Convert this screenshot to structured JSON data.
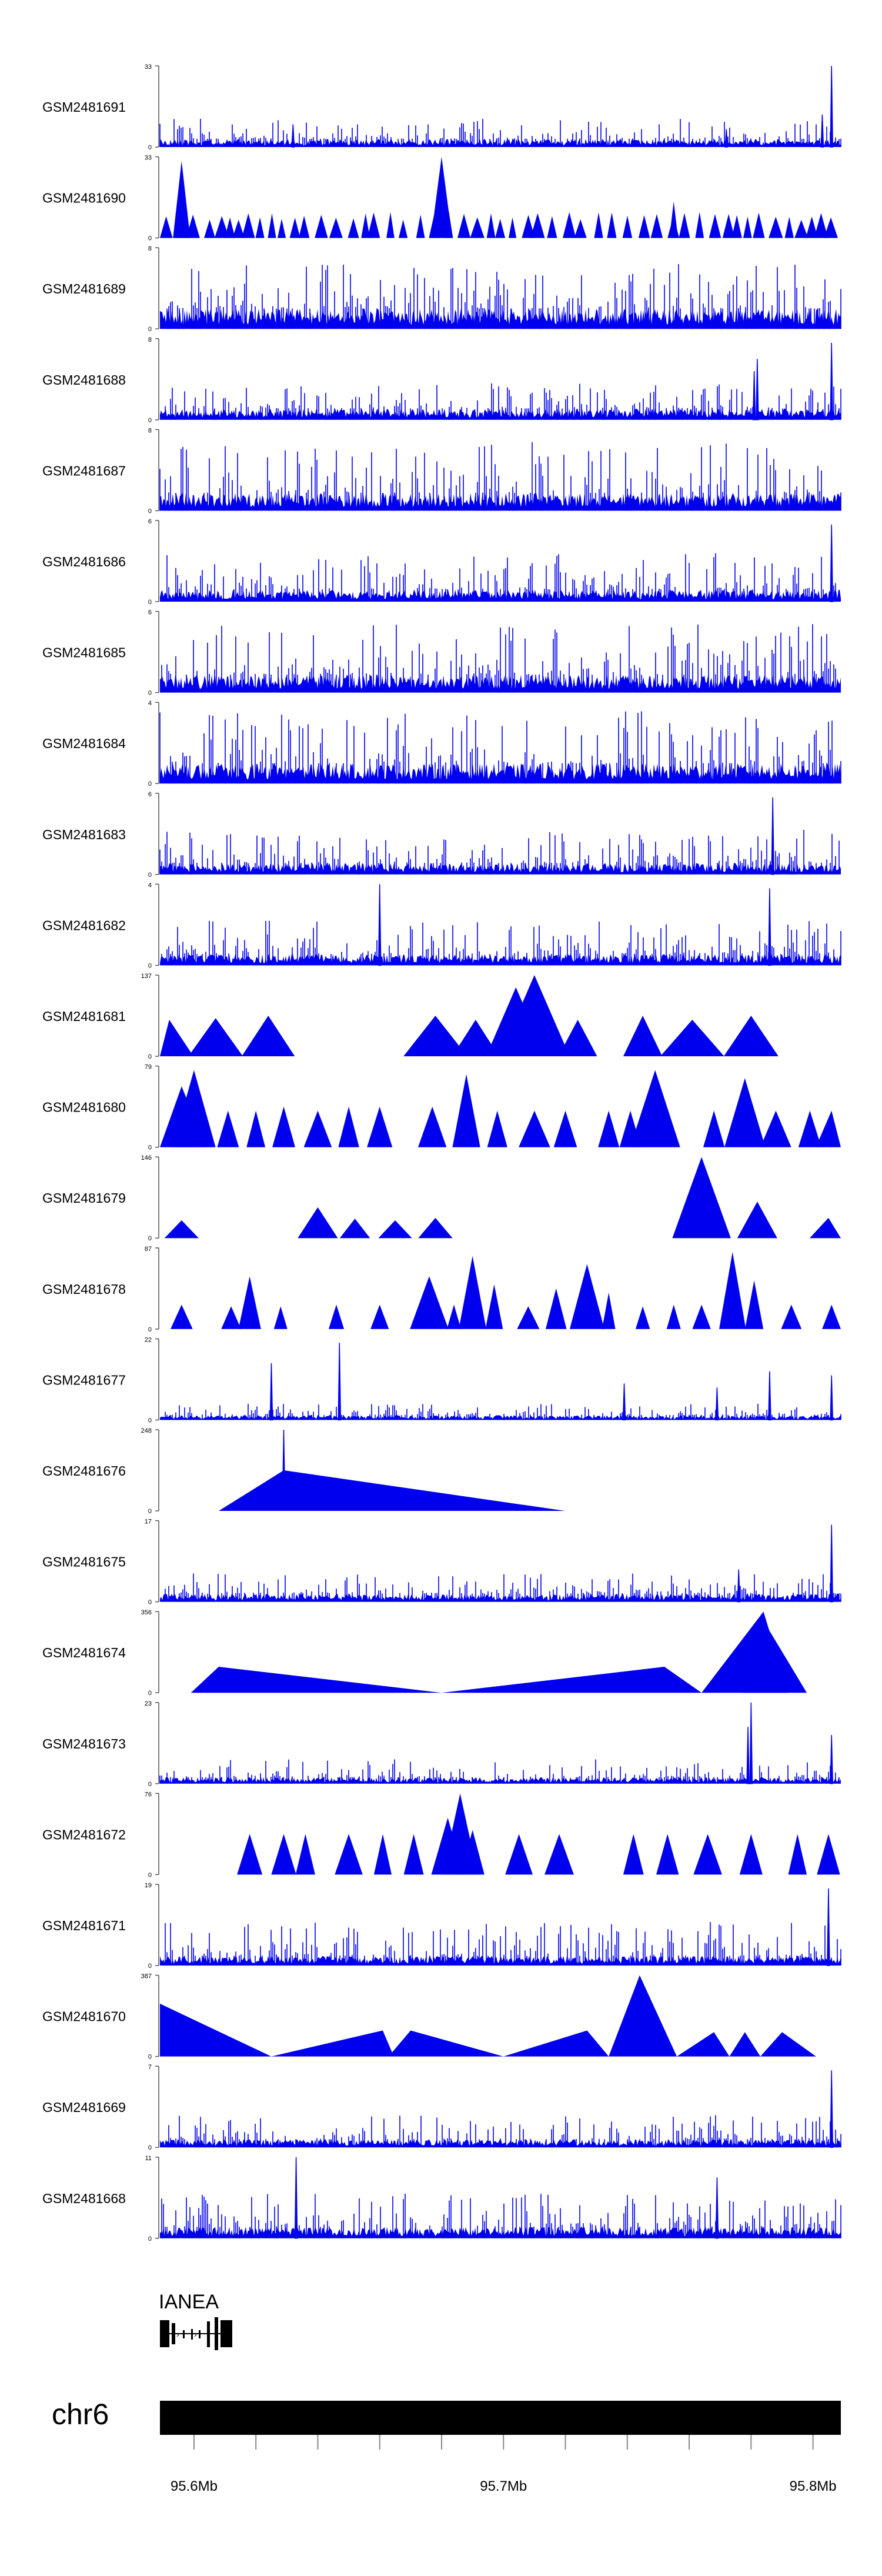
{
  "chart_data": {
    "type": "area",
    "title": "",
    "xlabel": "",
    "ylabel": "",
    "x_range_mb": [
      95.589,
      95.809
    ],
    "x_ticks": [
      {
        "value": 95.6,
        "label": "95.6Mb"
      },
      {
        "value": 95.7,
        "label": "95.7Mb"
      },
      {
        "value": 95.8,
        "label": "95.8Mb"
      }
    ],
    "minor_ticks": [
      95.6,
      95.62,
      95.64,
      95.66,
      95.68,
      95.7,
      95.72,
      95.74,
      95.76,
      95.78,
      95.8
    ],
    "chromosome": {
      "label": "chr6"
    },
    "gene": {
      "label": "IANEA"
    },
    "track_color": "#0000ee",
    "tracks": [
      {
        "name": "GSM2481691",
        "ymax_label": "33",
        "ymin_label": "0",
        "ymax": 33,
        "style": "dense",
        "base": 0.1,
        "spike": 0.35,
        "seed": 11,
        "peaks": [
          [
            95.632,
            0.28
          ],
          [
            95.772,
            0.22
          ],
          [
            95.806,
            1.0
          ],
          [
            95.803,
            0.4
          ]
        ]
      },
      {
        "name": "GSM2481690",
        "ymax_label": "33",
        "ymin_label": "0",
        "ymax": 33,
        "style": "sparse",
        "spacing": 0.0042,
        "width": 0.0018,
        "hlo": 0.22,
        "hhi": 0.34,
        "seed": 12,
        "peaks": [
          [
            95.596,
            0.95
          ],
          [
            95.68,
            1.0
          ],
          [
            95.755,
            0.45
          ]
        ]
      },
      {
        "name": "GSM2481689",
        "ymax_label": "8",
        "ymin_label": "0",
        "ymax": 8,
        "style": "dense",
        "base": 0.25,
        "spike": 0.8,
        "seed": 13,
        "peaks": []
      },
      {
        "name": "GSM2481688",
        "ymax_label": "8",
        "ymin_label": "0",
        "ymax": 8,
        "style": "dense",
        "base": 0.14,
        "spike": 0.45,
        "seed": 14,
        "peaks": [
          [
            95.782,
            0.75
          ],
          [
            95.781,
            0.6
          ],
          [
            95.806,
            0.95
          ]
        ]
      },
      {
        "name": "GSM2481687",
        "ymax_label": "8",
        "ymin_label": "0",
        "ymax": 8,
        "style": "dense",
        "base": 0.22,
        "spike": 0.85,
        "seed": 15,
        "peaks": []
      },
      {
        "name": "GSM2481686",
        "ymax_label": "6",
        "ymin_label": "0",
        "ymax": 6,
        "style": "dense",
        "base": 0.15,
        "spike": 0.6,
        "seed": 16,
        "peaks": [
          [
            95.806,
            0.95
          ]
        ]
      },
      {
        "name": "GSM2481685",
        "ymax_label": "6",
        "ymin_label": "0",
        "ymax": 6,
        "style": "dense",
        "base": 0.22,
        "spike": 0.85,
        "seed": 17,
        "peaks": []
      },
      {
        "name": "GSM2481684",
        "ymax_label": "4",
        "ymin_label": "0",
        "ymax": 4,
        "style": "dense",
        "base": 0.25,
        "spike": 0.9,
        "seed": 18,
        "peaks": []
      },
      {
        "name": "GSM2481683",
        "ymax_label": "6",
        "ymin_label": "0",
        "ymax": 6,
        "style": "dense",
        "base": 0.14,
        "spike": 0.55,
        "seed": 19,
        "peaks": [
          [
            95.787,
            0.95
          ]
        ]
      },
      {
        "name": "GSM2481682",
        "ymax_label": "4",
        "ymin_label": "0",
        "ymax": 4,
        "style": "dense",
        "base": 0.14,
        "spike": 0.55,
        "seed": 20,
        "peaks": [
          [
            95.66,
            1.0
          ],
          [
            95.786,
            0.95
          ]
        ]
      },
      {
        "name": "GSM2481681",
        "ymax_label": "137",
        "ymin_label": "0",
        "ymax": 137,
        "style": "sparse",
        "seed": 21,
        "peaks": [
          [
            95.592,
            0.45
          ],
          [
            95.607,
            0.47
          ],
          [
            95.624,
            0.5
          ],
          [
            95.678,
            0.5
          ],
          [
            95.691,
            0.45
          ],
          [
            95.704,
            0.85
          ],
          [
            95.71,
            1.0
          ],
          [
            95.724,
            0.45
          ],
          [
            95.745,
            0.5
          ],
          [
            95.761,
            0.45
          ],
          [
            95.78,
            0.5
          ]
        ],
        "width": 0.008,
        "spacing": 0
      },
      {
        "name": "GSM2481680",
        "ymax_label": "79",
        "ymin_label": "0",
        "ymax": 79,
        "style": "sparse",
        "seed": 22,
        "peaks": [
          [
            95.596,
            0.75
          ],
          [
            95.6,
            0.95
          ],
          [
            95.611,
            0.45
          ],
          [
            95.62,
            0.45
          ],
          [
            95.629,
            0.5
          ],
          [
            95.64,
            0.45
          ],
          [
            95.65,
            0.5
          ],
          [
            95.66,
            0.5
          ],
          [
            95.677,
            0.5
          ],
          [
            95.688,
            0.9
          ],
          [
            95.698,
            0.45
          ],
          [
            95.71,
            0.45
          ],
          [
            95.72,
            0.45
          ],
          [
            95.734,
            0.45
          ],
          [
            95.741,
            0.45
          ],
          [
            95.749,
            0.95
          ],
          [
            95.768,
            0.45
          ],
          [
            95.778,
            0.85
          ],
          [
            95.788,
            0.45
          ],
          [
            95.799,
            0.45
          ],
          [
            95.806,
            0.45
          ]
        ],
        "width": 0.004,
        "spacing": 0
      },
      {
        "name": "GSM2481679",
        "ymax_label": "146",
        "ymin_label": "0",
        "ymax": 146,
        "style": "sparse",
        "seed": 23,
        "peaks": [
          [
            95.596,
            0.22
          ],
          [
            95.64,
            0.38
          ],
          [
            95.652,
            0.24
          ],
          [
            95.665,
            0.22
          ],
          [
            95.678,
            0.25
          ],
          [
            95.764,
            1.0
          ],
          [
            95.782,
            0.45
          ],
          [
            95.805,
            0.25
          ]
        ],
        "width": 0.006,
        "spacing": 0
      },
      {
        "name": "GSM2481678",
        "ymax_label": "87",
        "ymin_label": "0",
        "ymax": 87,
        "style": "sparse",
        "seed": 24,
        "peaks": [
          [
            95.596,
            0.3
          ],
          [
            95.612,
            0.28
          ],
          [
            95.618,
            0.65
          ],
          [
            95.628,
            0.28
          ],
          [
            95.646,
            0.3
          ],
          [
            95.66,
            0.3
          ],
          [
            95.676,
            0.65
          ],
          [
            95.684,
            0.3
          ],
          [
            95.69,
            0.9
          ],
          [
            95.697,
            0.55
          ],
          [
            95.708,
            0.28
          ],
          [
            95.717,
            0.5
          ],
          [
            95.727,
            0.8
          ],
          [
            95.734,
            0.45
          ],
          [
            95.745,
            0.28
          ],
          [
            95.755,
            0.3
          ],
          [
            95.764,
            0.3
          ],
          [
            95.774,
            0.95
          ],
          [
            95.781,
            0.6
          ],
          [
            95.793,
            0.3
          ],
          [
            95.806,
            0.3
          ]
        ],
        "width": 0.003,
        "spacing": 0
      },
      {
        "name": "GSM2481677",
        "ymax_label": "22",
        "ymin_label": "0",
        "ymax": 22,
        "style": "dense",
        "base": 0.06,
        "spike": 0.2,
        "seed": 25,
        "peaks": [
          [
            95.625,
            0.7
          ],
          [
            95.647,
            0.95
          ],
          [
            95.739,
            0.45
          ],
          [
            95.769,
            0.4
          ],
          [
            95.786,
            0.6
          ],
          [
            95.806,
            0.55
          ]
        ]
      },
      {
        "name": "GSM2481676",
        "ymax_label": "248",
        "ymin_label": "0",
        "ymax": 248,
        "style": "triangle",
        "seed": 26,
        "polys": [
          [
            [
              95.608,
              0
            ],
            [
              95.629,
              0.5
            ],
            [
              95.72,
              0
            ]
          ]
        ],
        "spikes": [
          [
            95.629,
            1.0
          ]
        ]
      },
      {
        "name": "GSM2481675",
        "ymax_label": "17",
        "ymin_label": "0",
        "ymax": 17,
        "style": "dense",
        "base": 0.1,
        "spike": 0.35,
        "seed": 27,
        "peaks": [
          [
            95.776,
            0.4
          ],
          [
            95.806,
            0.95
          ]
        ]
      },
      {
        "name": "GSM2481674",
        "ymax_label": "356",
        "ymin_label": "0",
        "ymax": 356,
        "style": "triangle",
        "seed": 28,
        "polys": [
          [
            [
              95.599,
              0
            ],
            [
              95.608,
              0.32
            ],
            [
              95.68,
              0
            ],
            [
              95.752,
              0.32
            ],
            [
              95.764,
              0
            ],
            [
              95.784,
              1.0
            ],
            [
              95.792,
              0
            ]
          ],
          [
            [
              95.777,
              0
            ],
            [
              95.783,
              0.95
            ],
            [
              95.798,
              0
            ]
          ]
        ],
        "spikes": [
          [
            95.784,
            0.92
          ]
        ]
      },
      {
        "name": "GSM2481673",
        "ymax_label": "23",
        "ymin_label": "0",
        "ymax": 23,
        "style": "dense",
        "base": 0.08,
        "spike": 0.3,
        "seed": 29,
        "peaks": [
          [
            95.78,
            1.0
          ],
          [
            95.779,
            0.7
          ],
          [
            95.806,
            0.6
          ]
        ]
      },
      {
        "name": "GSM2481672",
        "ymax_label": "76",
        "ymin_label": "0",
        "ymax": 76,
        "style": "sparse",
        "seed": 30,
        "peaks": [
          [
            95.618,
            0.5
          ],
          [
            95.629,
            0.5
          ],
          [
            95.636,
            0.5
          ],
          [
            95.65,
            0.5
          ],
          [
            95.661,
            0.5
          ],
          [
            95.671,
            0.5
          ],
          [
            95.682,
            0.7
          ],
          [
            95.686,
            1.0
          ],
          [
            95.69,
            0.55
          ],
          [
            95.705,
            0.5
          ],
          [
            95.718,
            0.5
          ],
          [
            95.742,
            0.5
          ],
          [
            95.753,
            0.5
          ],
          [
            95.766,
            0.5
          ],
          [
            95.78,
            0.5
          ],
          [
            95.795,
            0.5
          ],
          [
            95.805,
            0.5
          ]
        ],
        "width": 0.004,
        "spacing": 0
      },
      {
        "name": "GSM2481671",
        "ymax_label": "19",
        "ymin_label": "0",
        "ymax": 19,
        "style": "dense",
        "base": 0.12,
        "spike": 0.55,
        "seed": 31,
        "peaks": [
          [
            95.805,
            0.95
          ]
        ]
      },
      {
        "name": "GSM2481670",
        "ymax_label": "387",
        "ymin_label": "0",
        "ymax": 387,
        "style": "triangle",
        "seed": 32,
        "polys": [
          [
            [
              95.589,
              0.65
            ],
            [
              95.589,
              0.65
            ],
            [
              95.625,
              0
            ],
            [
              95.661,
              0.32
            ],
            [
              95.664,
              0.05
            ],
            [
              95.67,
              0.32
            ],
            [
              95.7,
              0
            ],
            [
              95.727,
              0.32
            ],
            [
              95.734,
              0
            ],
            [
              95.744,
              1.0
            ],
            [
              95.756,
              0
            ],
            [
              95.768,
              0.3
            ],
            [
              95.773,
              0
            ],
            [
              95.778,
              0.3
            ],
            [
              95.783,
              0
            ],
            [
              95.79,
              0.3
            ],
            [
              95.801,
              0
            ]
          ]
        ],
        "spikes": []
      },
      {
        "name": "GSM2481669",
        "ymax_label": "7",
        "ymin_label": "0",
        "ymax": 7,
        "style": "dense",
        "base": 0.1,
        "spike": 0.4,
        "seed": 33,
        "peaks": [
          [
            95.806,
            0.95
          ]
        ]
      },
      {
        "name": "GSM2481668",
        "ymax_label": "11",
        "ymin_label": "0",
        "ymax": 11,
        "style": "dense",
        "base": 0.14,
        "spike": 0.55,
        "seed": 34,
        "peaks": [
          [
            95.633,
            1.0
          ],
          [
            95.769,
            0.75
          ]
        ]
      }
    ]
  }
}
